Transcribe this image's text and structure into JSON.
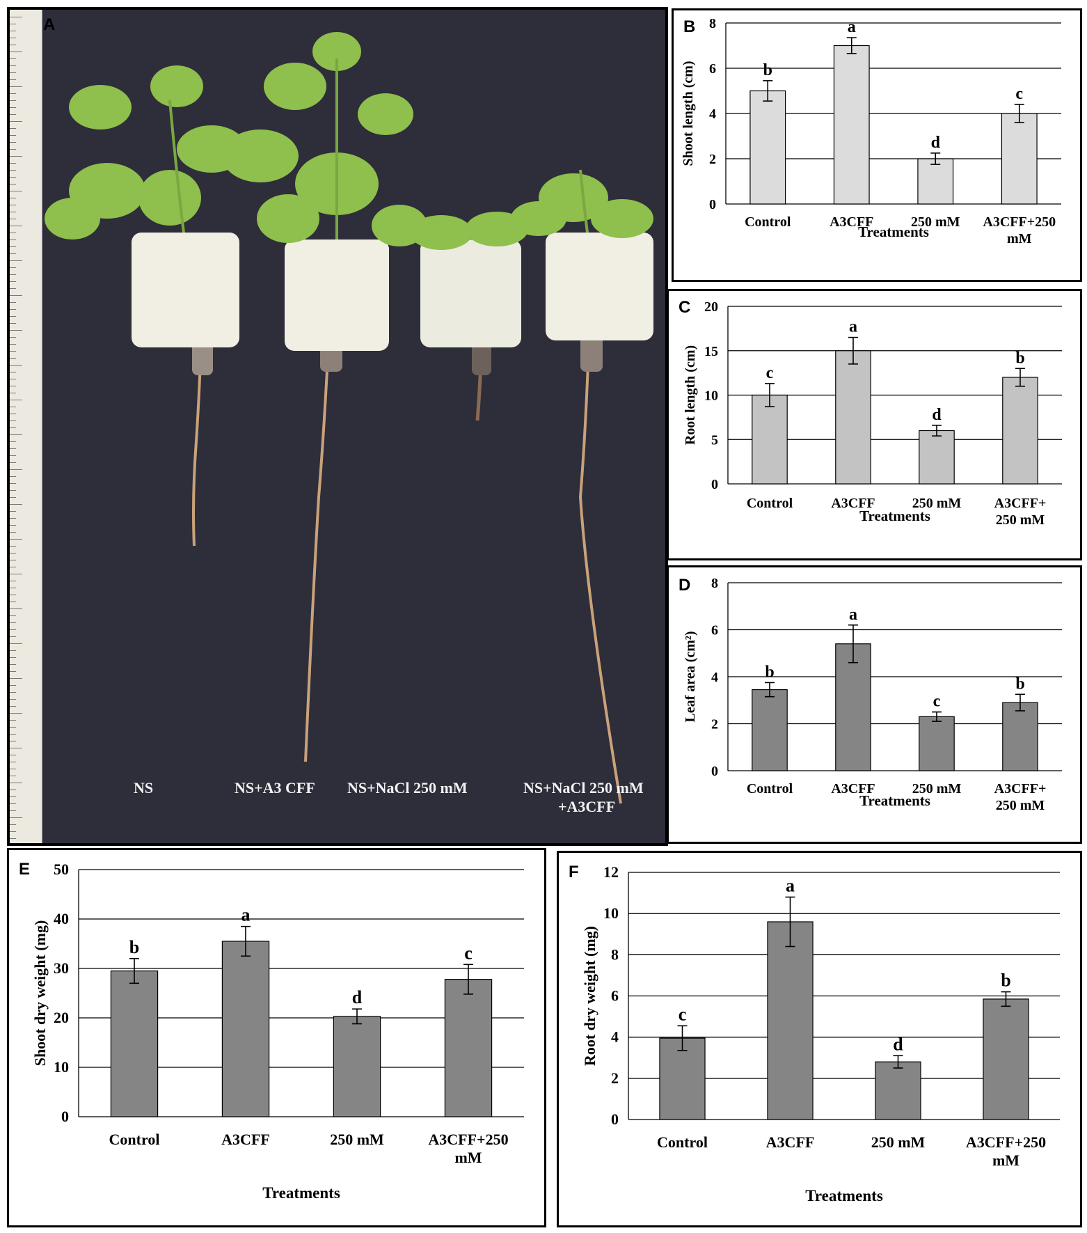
{
  "photo": {
    "panel_label": "A",
    "labels": [
      "NS",
      "NS+A3 CFF",
      "NS+NaCl 250 mM",
      "NS+NaCl 250 mM",
      "+A3CFF"
    ]
  },
  "colors": {
    "bar_light": "#dcdcdc",
    "bar_mid": "#c3c3c3",
    "bar_dark": "#858585",
    "grid": "#000000",
    "background_photo": "#2e2d3a"
  },
  "chart_data": [
    {
      "panel": "B",
      "type": "bar",
      "categories": [
        "Control",
        "A3CFF",
        "250 mM",
        "A3CFF+250 mM"
      ],
      "values": [
        5.0,
        7.0,
        2.0,
        4.0
      ],
      "errors": [
        0.45,
        0.35,
        0.25,
        0.4
      ],
      "letters": [
        "b",
        "a",
        "d",
        "c"
      ],
      "ylabel": "Shoot length (cm)",
      "xlabel": "Treatments",
      "ylim": [
        0,
        8
      ],
      "yticks": [
        0,
        2,
        4,
        6,
        8
      ],
      "grid": true,
      "bar_color": "#dcdcdc"
    },
    {
      "panel": "C",
      "type": "bar",
      "categories": [
        "Control",
        "A3CFF",
        "250 mM",
        "A3CFF+ 250 mM"
      ],
      "values": [
        10.0,
        15.0,
        6.0,
        12.0
      ],
      "errors": [
        1.3,
        1.5,
        0.6,
        1.0
      ],
      "letters": [
        "c",
        "a",
        "d",
        "b"
      ],
      "ylabel": "Root length (cm)",
      "xlabel": "Treatments",
      "ylim": [
        0,
        20
      ],
      "yticks": [
        0,
        5,
        10,
        15,
        20
      ],
      "grid": true,
      "bar_color": "#c3c3c3"
    },
    {
      "panel": "D",
      "type": "bar",
      "categories": [
        "Control",
        "A3CFF",
        "250 mM",
        "A3CFF+ 250 mM"
      ],
      "values": [
        3.45,
        5.4,
        2.3,
        2.9
      ],
      "errors": [
        0.3,
        0.8,
        0.2,
        0.35
      ],
      "letters": [
        "b",
        "a",
        "c",
        "b"
      ],
      "ylabel": "Leaf area (cm²)",
      "xlabel": "Treatments",
      "ylim": [
        0,
        8
      ],
      "yticks": [
        0,
        2,
        4,
        6,
        8
      ],
      "grid": true,
      "bar_color": "#858585"
    },
    {
      "panel": "E",
      "type": "bar",
      "categories": [
        "Control",
        "A3CFF",
        "250 mM",
        "A3CFF+250 mM"
      ],
      "values": [
        29.5,
        35.5,
        20.3,
        27.8
      ],
      "errors": [
        2.5,
        3.0,
        1.5,
        3.0
      ],
      "letters": [
        "b",
        "a",
        "d",
        "c"
      ],
      "ylabel": "Shoot dry weight (mg)",
      "xlabel": "Treatments",
      "ylim": [
        0,
        50
      ],
      "yticks": [
        0,
        10,
        20,
        30,
        40,
        50
      ],
      "grid": true,
      "bar_color": "#858585"
    },
    {
      "panel": "F",
      "type": "bar",
      "categories": [
        "Control",
        "A3CFF",
        "250 mM",
        "A3CFF+250 mM"
      ],
      "values": [
        3.95,
        9.6,
        2.8,
        5.85
      ],
      "errors": [
        0.6,
        1.2,
        0.3,
        0.35
      ],
      "letters": [
        "c",
        "a",
        "d",
        "b"
      ],
      "ylabel": "Root dry weight (mg)",
      "xlabel": "Treatments",
      "ylim": [
        0,
        12
      ],
      "yticks": [
        0,
        2,
        4,
        6,
        8,
        10,
        12
      ],
      "grid": true,
      "bar_color": "#858585"
    }
  ]
}
